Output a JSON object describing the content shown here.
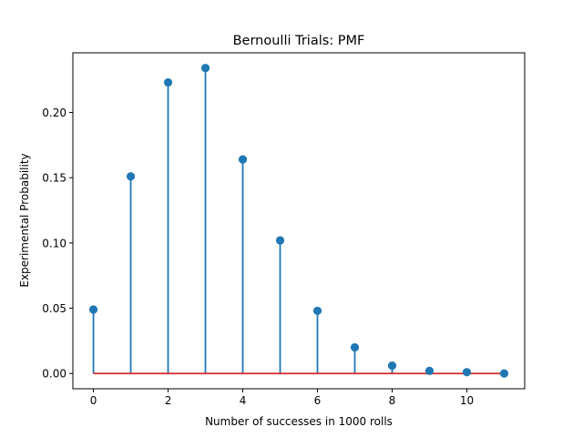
{
  "chart_data": {
    "type": "stem",
    "title": "Bernoulli Trials: PMF",
    "xlabel": "Number of successes in 1000 rolls",
    "ylabel": "Experimental Probability",
    "xlim": [
      -0.55,
      11.55
    ],
    "ylim": [
      -0.0117,
      0.2457
    ],
    "x_ticks": [
      0,
      2,
      4,
      6,
      8,
      10
    ],
    "y_ticks": [
      0.0,
      0.05,
      0.1,
      0.15,
      0.2
    ],
    "y_tick_labels": [
      "0.00",
      "0.05",
      "0.10",
      "0.15",
      "0.20"
    ],
    "x": [
      0,
      1,
      2,
      3,
      4,
      5,
      6,
      7,
      8,
      9,
      10,
      11
    ],
    "values": [
      0.049,
      0.151,
      0.223,
      0.234,
      0.164,
      0.102,
      0.048,
      0.02,
      0.006,
      0.002,
      0.001,
      0.0
    ],
    "grid": false,
    "colors": {
      "stem": "#1f77b4",
      "baseline": "#d62728",
      "axes": "#000000"
    }
  }
}
